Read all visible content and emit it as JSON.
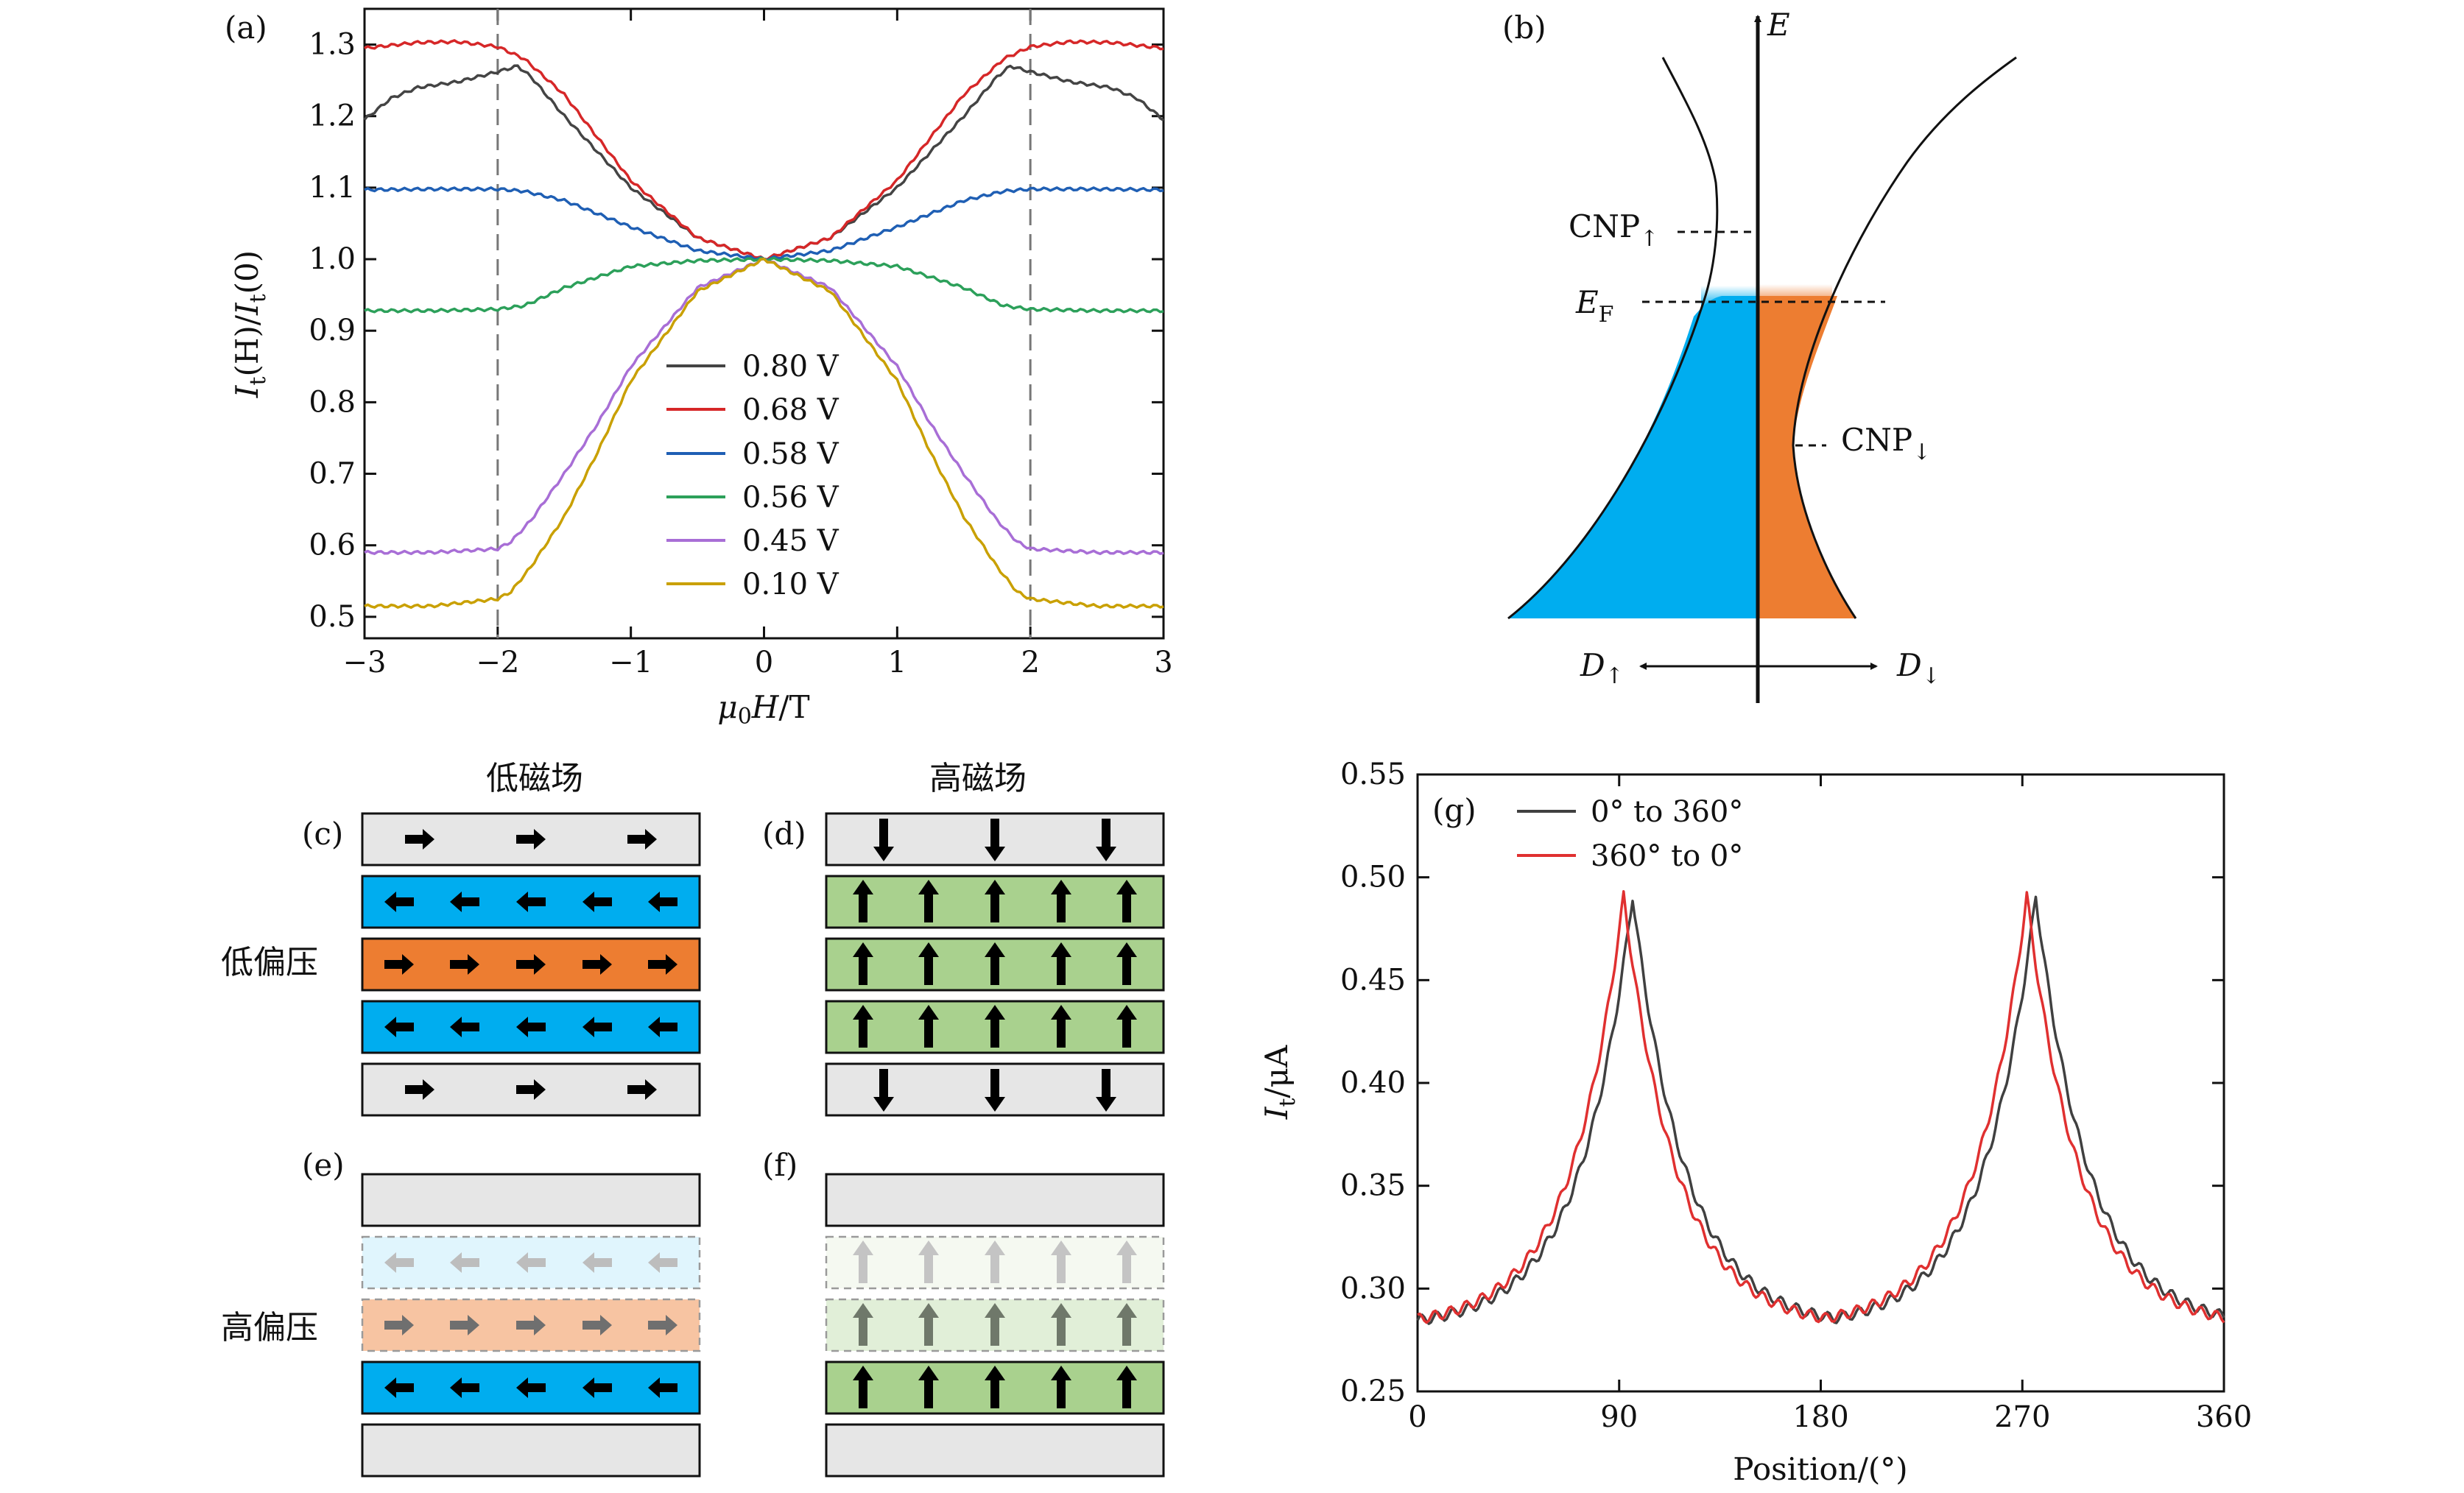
{
  "panels": {
    "a": {
      "label": "(a)",
      "ylabel": {
        "i": "I",
        "sub": "t",
        "mid": "(H)/",
        "i2": "I",
        "sub2": "t",
        "end": "(0)"
      },
      "xlabel": {
        "mu": "μ",
        "sub": "0",
        "h": "H",
        "rest": "/T"
      },
      "legend": [
        "0.80 V",
        "0.68 V",
        "0.58 V",
        "0.56 V",
        "0.45 V",
        "0.10 V"
      ]
    },
    "b": {
      "label": "(b)",
      "e_axis": "E",
      "cnp_up": {
        "main": "CNP",
        "arrow": "↑"
      },
      "cnp_down": {
        "main": "CNP",
        "arrow": "↓"
      },
      "ef": {
        "main": "E",
        "sub": "F"
      },
      "d_up": {
        "main": "D",
        "arrow": "↑"
      },
      "d_down": {
        "main": "D",
        "arrow": "↓"
      }
    },
    "c": {
      "label": "(c)"
    },
    "d": {
      "label": "(d)"
    },
    "e": {
      "label": "(e)"
    },
    "f": {
      "label": "(f)"
    },
    "cd_headers": {
      "low_field": "低磁场",
      "high_field": "高磁场"
    },
    "row_labels": {
      "low_bias": "低偏压",
      "high_bias": "高偏压"
    },
    "g": {
      "label": "(g)",
      "ylabel": {
        "i": "I",
        "sub": "t",
        "rest": "/μA"
      },
      "xlabel": "Position/(°)",
      "legend": [
        "0° to 360°",
        "360° to 0°"
      ]
    }
  },
  "colors": {
    "blue": "#00adef",
    "orange": "#ed7d31",
    "green": "#a9d18e",
    "gray": "#e6e6e6"
  },
  "chart_data": [
    {
      "type": "line",
      "panel": "a",
      "title": "",
      "xlabel": "μ0H/T",
      "ylabel": "It(H)/It(0)",
      "xlim": [
        -3,
        3
      ],
      "ylim": [
        0.47,
        1.35
      ],
      "xticks": [
        -3,
        -2,
        -1,
        0,
        1,
        2,
        3
      ],
      "xtick_labels": [
        "−3",
        "−2",
        "−1",
        "0",
        "1",
        "2",
        "3"
      ],
      "yticks": [
        0.5,
        0.6,
        0.7,
        0.8,
        0.9,
        1.0,
        1.1,
        1.2,
        1.3
      ],
      "ytick_labels": [
        "0.5",
        "0.6",
        "0.7",
        "0.8",
        "0.9",
        "1.0",
        "1.1",
        "1.2",
        "1.3"
      ],
      "vlines": [
        -2,
        2
      ],
      "series": [
        {
          "name": "0.80 V",
          "color": "#444444",
          "x": [
            0,
            0.5,
            1.0,
            1.5,
            1.75,
            1.85,
            2.0,
            2.3,
            2.6,
            2.8,
            3.0
          ],
          "y": [
            1.0,
            1.03,
            1.1,
            1.2,
            1.255,
            1.27,
            1.262,
            1.248,
            1.24,
            1.225,
            1.195
          ]
        },
        {
          "name": "0.68 V",
          "color": "#d62728",
          "x": [
            0,
            0.5,
            1.0,
            1.5,
            1.8,
            2.0,
            2.3,
            2.6,
            3.0
          ],
          "y": [
            1.0,
            1.03,
            1.11,
            1.23,
            1.28,
            1.297,
            1.304,
            1.303,
            1.295
          ]
        },
        {
          "name": "0.58 V",
          "color": "#1f5fb4",
          "x": [
            0,
            0.5,
            1.0,
            1.5,
            1.8,
            2.0,
            2.5,
            3.0
          ],
          "y": [
            1.0,
            1.012,
            1.045,
            1.082,
            1.095,
            1.098,
            1.098,
            1.097
          ]
        },
        {
          "name": "0.56 V",
          "color": "#2ca05a",
          "x": [
            0,
            0.5,
            1.0,
            1.5,
            1.8,
            2.0,
            2.5,
            3.0
          ],
          "y": [
            1.0,
            0.998,
            0.99,
            0.96,
            0.935,
            0.93,
            0.928,
            0.928
          ]
        },
        {
          "name": "0.45 V",
          "color": "#a86ed6",
          "x": [
            0,
            0.5,
            1.0,
            1.25,
            1.5,
            1.75,
            1.9,
            2.0,
            2.5,
            3.0
          ],
          "y": [
            1.0,
            0.96,
            0.85,
            0.77,
            0.7,
            0.635,
            0.605,
            0.595,
            0.59,
            0.59
          ]
        },
        {
          "name": "0.10 V",
          "color": "#c9a000",
          "x": [
            0,
            0.5,
            1.0,
            1.25,
            1.5,
            1.75,
            1.9,
            2.0,
            2.5,
            3.0
          ],
          "y": [
            1.0,
            0.955,
            0.83,
            0.73,
            0.64,
            0.57,
            0.535,
            0.525,
            0.515,
            0.515
          ]
        }
      ]
    },
    {
      "type": "line",
      "panel": "g",
      "title": "",
      "xlabel": "Position/(°)",
      "ylabel": "It/μA",
      "xlim": [
        0,
        360
      ],
      "ylim": [
        0.25,
        0.55
      ],
      "xticks": [
        0,
        90,
        180,
        270,
        360
      ],
      "xtick_labels": [
        "0",
        "90",
        "180",
        "270",
        "360"
      ],
      "yticks": [
        0.25,
        0.3,
        0.35,
        0.4,
        0.45,
        0.5,
        0.55
      ],
      "ytick_labels": [
        "0.25",
        "0.30",
        "0.35",
        "0.40",
        "0.45",
        "0.50",
        "0.55"
      ],
      "series": [
        {
          "name": "0° to 360°",
          "color": "#404040",
          "peaks": [
            96,
            276
          ],
          "base": 0.281,
          "peak": 0.491
        },
        {
          "name": "360° to 0°",
          "color": "#e03030",
          "peaks": [
            92,
            272
          ],
          "base": 0.281,
          "peak": 0.491
        }
      ]
    }
  ]
}
